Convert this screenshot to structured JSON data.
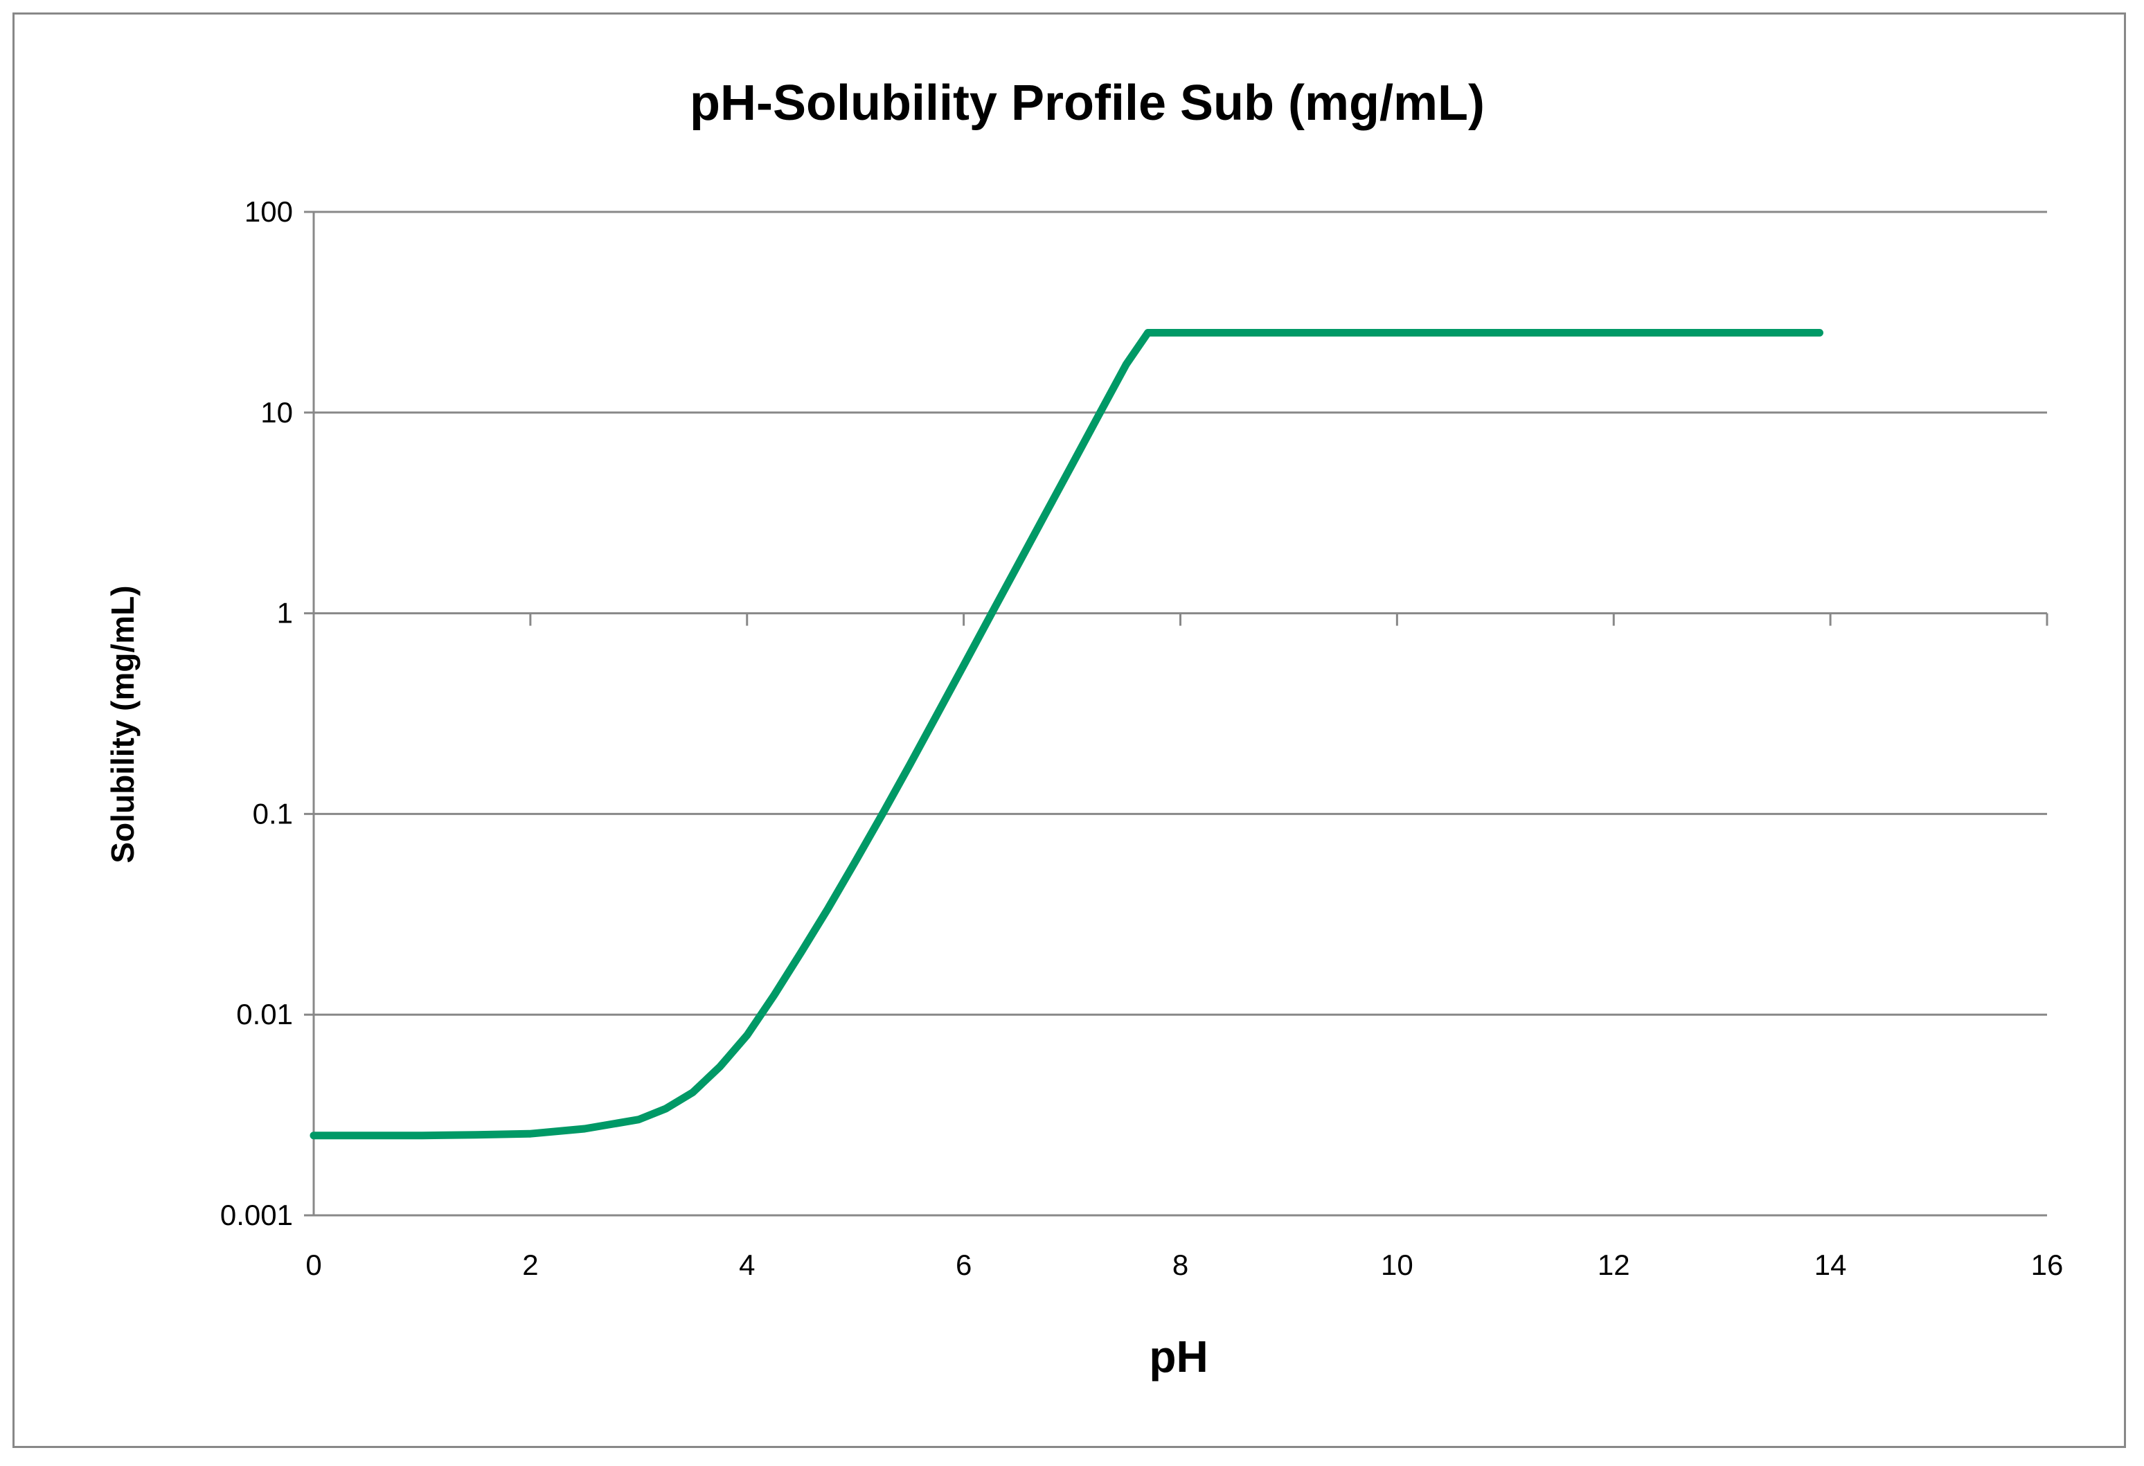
{
  "chart_data": {
    "type": "line",
    "title": "pH-Solubility Profile Sub (mg/mL)",
    "xlabel": "pH",
    "ylabel": "Solubility (mg/mL)",
    "xlim": [
      0,
      16
    ],
    "ylim": [
      0.001,
      100
    ],
    "y_scale": "log",
    "grid": "horizontal",
    "legend": "none",
    "x_ticks": [
      0,
      2,
      4,
      6,
      8,
      10,
      12,
      14,
      16
    ],
    "y_ticks": [
      0.001,
      0.01,
      0.1,
      1,
      10,
      100
    ],
    "x_tick_labels": [
      "0",
      "2",
      "4",
      "6",
      "8",
      "10",
      "12",
      "14",
      "16"
    ],
    "y_tick_labels": [
      "0.001",
      "0.01",
      "0.1",
      "1",
      "10",
      "100"
    ],
    "colors": {
      "line": "#009966",
      "grid": "#888888",
      "axis": "#888888"
    },
    "series": [
      {
        "x": [
          0,
          0.5,
          1,
          1.5,
          2,
          2.5,
          3,
          3.25,
          3.5,
          3.75,
          4,
          4.25,
          4.5,
          4.75,
          5,
          5.25,
          5.5,
          5.75,
          6,
          6.25,
          6.5,
          6.75,
          7,
          7.25,
          7.5,
          7.7,
          8,
          9,
          10,
          11,
          12,
          13,
          13.9
        ],
        "y": [
          0.0025,
          0.0025,
          0.0025,
          0.00252,
          0.00255,
          0.0027,
          0.003,
          0.0034,
          0.0041,
          0.0055,
          0.0079,
          0.0125,
          0.0205,
          0.034,
          0.058,
          0.1,
          0.175,
          0.31,
          0.55,
          0.98,
          1.74,
          3.1,
          5.5,
          9.8,
          17.4,
          25,
          25,
          25,
          25,
          25,
          25,
          25,
          25
        ]
      }
    ]
  }
}
